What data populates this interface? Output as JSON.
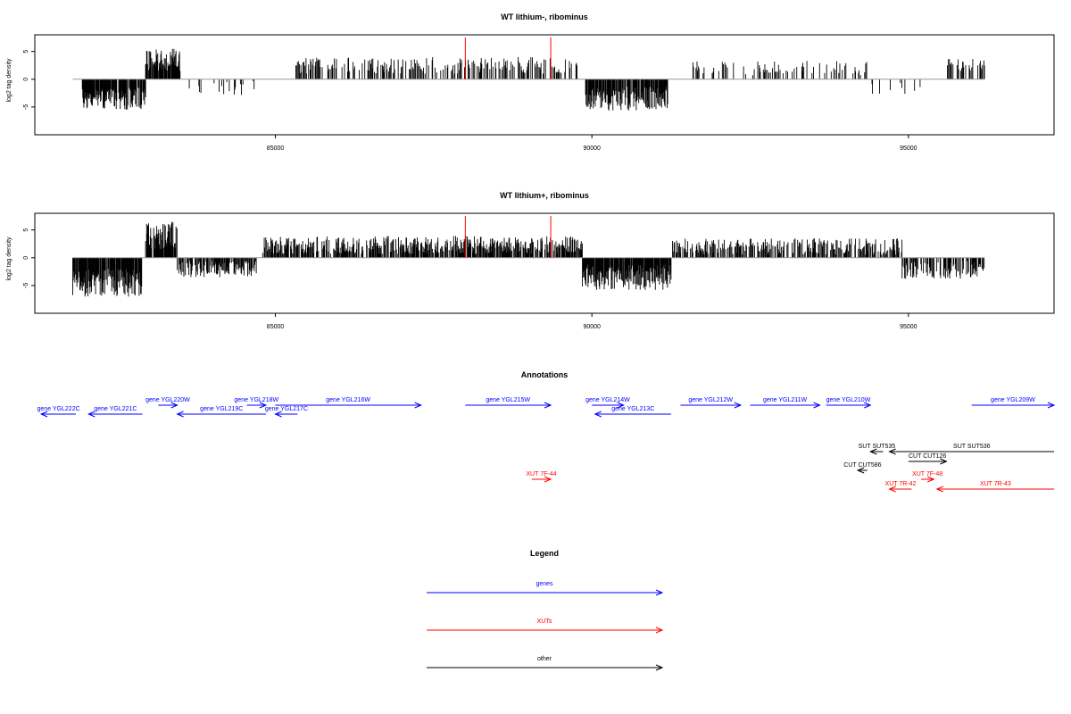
{
  "chart_data": [
    {
      "type": "bar",
      "title": "WT lithium-, ribominus",
      "ylabel": "log2 tag density",
      "xlabel": "",
      "xlim": [
        81200,
        97300
      ],
      "ylim": [
        -10,
        8
      ],
      "xticks": [
        "85000",
        "90000",
        "95000"
      ],
      "xtick_values": [
        85000,
        90000,
        95000
      ],
      "yticks": [
        "5",
        "0",
        "-5"
      ],
      "ytick_values": [
        5,
        0,
        -5
      ],
      "baseline_range": [
        81800,
        96200
      ],
      "marker_positions": [
        88000,
        89350
      ],
      "marker_color": "#ff0000",
      "bar_color": "#000000",
      "segments": [
        {
          "start": 81800,
          "end": 81900,
          "mean": -1,
          "amp": 1,
          "density": 0.1
        },
        {
          "start": 81950,
          "end": 82950,
          "mean": -3.5,
          "amp": 2,
          "density": 0.9
        },
        {
          "start": 82950,
          "end": 83500,
          "mean": 3.5,
          "amp": 2,
          "density": 0.9
        },
        {
          "start": 83600,
          "end": 84700,
          "mean": -1.5,
          "amp": 1.5,
          "density": 0.15
        },
        {
          "start": 85300,
          "end": 89800,
          "mean": 2.5,
          "amp": 1.5,
          "density": 0.35
        },
        {
          "start": 89900,
          "end": 91200,
          "mean": -3.5,
          "amp": 2.2,
          "density": 0.8
        },
        {
          "start": 91500,
          "end": 94400,
          "mean": 2,
          "amp": 1.3,
          "density": 0.2
        },
        {
          "start": 94400,
          "end": 95200,
          "mean": -1.5,
          "amp": 1.5,
          "density": 0.12
        },
        {
          "start": 95600,
          "end": 96200,
          "mean": 2.5,
          "amp": 1.2,
          "density": 0.4
        }
      ]
    },
    {
      "type": "bar",
      "title": "WT lithium+, ribominus",
      "ylabel": "log2 tag density",
      "xlabel": "",
      "xlim": [
        81200,
        97300
      ],
      "ylim": [
        -10,
        8
      ],
      "xticks": [
        "85000",
        "90000",
        "95000"
      ],
      "xtick_values": [
        85000,
        90000,
        95000
      ],
      "yticks": [
        "5",
        "0",
        "-5"
      ],
      "ytick_values": [
        5,
        0,
        -5
      ],
      "baseline_range": [
        81800,
        96200
      ],
      "marker_positions": [
        88000,
        89350
      ],
      "marker_color": "#ff0000",
      "bar_color": "#000000",
      "segments": [
        {
          "start": 81800,
          "end": 82900,
          "mean": -4.5,
          "amp": 2.5,
          "density": 0.9
        },
        {
          "start": 82950,
          "end": 83450,
          "mean": 4,
          "amp": 2.5,
          "density": 0.95
        },
        {
          "start": 83450,
          "end": 84700,
          "mean": -2,
          "amp": 1.5,
          "density": 0.6
        },
        {
          "start": 84800,
          "end": 89850,
          "mean": 2.3,
          "amp": 1.6,
          "density": 0.7
        },
        {
          "start": 89850,
          "end": 91250,
          "mean": -3.5,
          "amp": 2.3,
          "density": 0.9
        },
        {
          "start": 91250,
          "end": 94900,
          "mean": 2,
          "amp": 1.5,
          "density": 0.55
        },
        {
          "start": 94900,
          "end": 96200,
          "mean": -2.2,
          "amp": 1.6,
          "density": 0.6
        }
      ]
    }
  ],
  "annotations": {
    "title": "Annotations",
    "features": [
      {
        "label": "gene YGL222C",
        "kind": "genes",
        "start": 81300,
        "end": 81850,
        "strand": "-",
        "row": 2
      },
      {
        "label": "gene YGL221C",
        "kind": "genes",
        "start": 82050,
        "end": 82900,
        "strand": "-",
        "row": 2
      },
      {
        "label": "gene YGL220W",
        "kind": "genes",
        "start": 83150,
        "end": 83450,
        "strand": "+",
        "row": 1
      },
      {
        "label": "gene YGL219C",
        "kind": "genes",
        "start": 83450,
        "end": 84850,
        "strand": "-",
        "row": 2
      },
      {
        "label": "gene YGL218W",
        "kind": "genes",
        "start": 84550,
        "end": 84850,
        "strand": "+",
        "row": 1
      },
      {
        "label": "gene YGL217C",
        "kind": "genes",
        "start": 85000,
        "end": 85350,
        "strand": "-",
        "row": 2
      },
      {
        "label": "gene YGL216W",
        "kind": "genes",
        "start": 85000,
        "end": 87300,
        "strand": "+",
        "row": 1
      },
      {
        "label": "gene YGL215W",
        "kind": "genes",
        "start": 88000,
        "end": 89350,
        "strand": "+",
        "row": 1
      },
      {
        "label": "gene YGL214W",
        "kind": "genes",
        "start": 90000,
        "end": 90500,
        "strand": "+",
        "row": 1
      },
      {
        "label": "gene YGL213C",
        "kind": "genes",
        "start": 90050,
        "end": 91250,
        "strand": "-",
        "row": 2
      },
      {
        "label": "gene YGL212W",
        "kind": "genes",
        "start": 91400,
        "end": 92350,
        "strand": "+",
        "row": 1
      },
      {
        "label": "gene YGL211W",
        "kind": "genes",
        "start": 92500,
        "end": 93600,
        "strand": "+",
        "row": 1
      },
      {
        "label": "gene YGL210W",
        "kind": "genes",
        "start": 93700,
        "end": 94400,
        "strand": "+",
        "row": 1
      },
      {
        "label": "gene YGL209W",
        "kind": "genes",
        "start": 96000,
        "end": 97300,
        "strand": "+",
        "row": 1
      },
      {
        "label": "SUT SUT535",
        "kind": "other",
        "start": 94400,
        "end": 94600,
        "strand": "-",
        "row": 4
      },
      {
        "label": "SUT SUT536",
        "kind": "other",
        "start": 94700,
        "end": 97300,
        "strand": "-",
        "row": 4
      },
      {
        "label": "CUT CUT126",
        "kind": "other",
        "start": 95000,
        "end": 95600,
        "strand": "+",
        "row": 5
      },
      {
        "label": "CUT CUT586",
        "kind": "other",
        "start": 94200,
        "end": 94350,
        "strand": "-",
        "row": 6
      },
      {
        "label": "XUT 7F-44",
        "kind": "XUTs",
        "start": 89050,
        "end": 89350,
        "strand": "+",
        "row": 7
      },
      {
        "label": "XUT 7F-48",
        "kind": "XUTs",
        "start": 95200,
        "end": 95400,
        "strand": "+",
        "row": 7
      },
      {
        "label": "XUT 7R-42",
        "kind": "XUTs",
        "start": 94700,
        "end": 95050,
        "strand": "-",
        "row": 8
      },
      {
        "label": "XUT 7R-43",
        "kind": "XUTs",
        "start": 95450,
        "end": 97300,
        "strand": "-",
        "row": 8
      }
    ]
  },
  "legend": {
    "title": "Legend",
    "items": [
      {
        "label": "genes",
        "color": "#0000ff"
      },
      {
        "label": "XUTs",
        "color": "#ff0000"
      },
      {
        "label": "other",
        "color": "#000000"
      }
    ]
  },
  "colors": {
    "genes": "#0000ff",
    "XUTs": "#ff0000",
    "other": "#000000",
    "baseline": "#999999"
  }
}
